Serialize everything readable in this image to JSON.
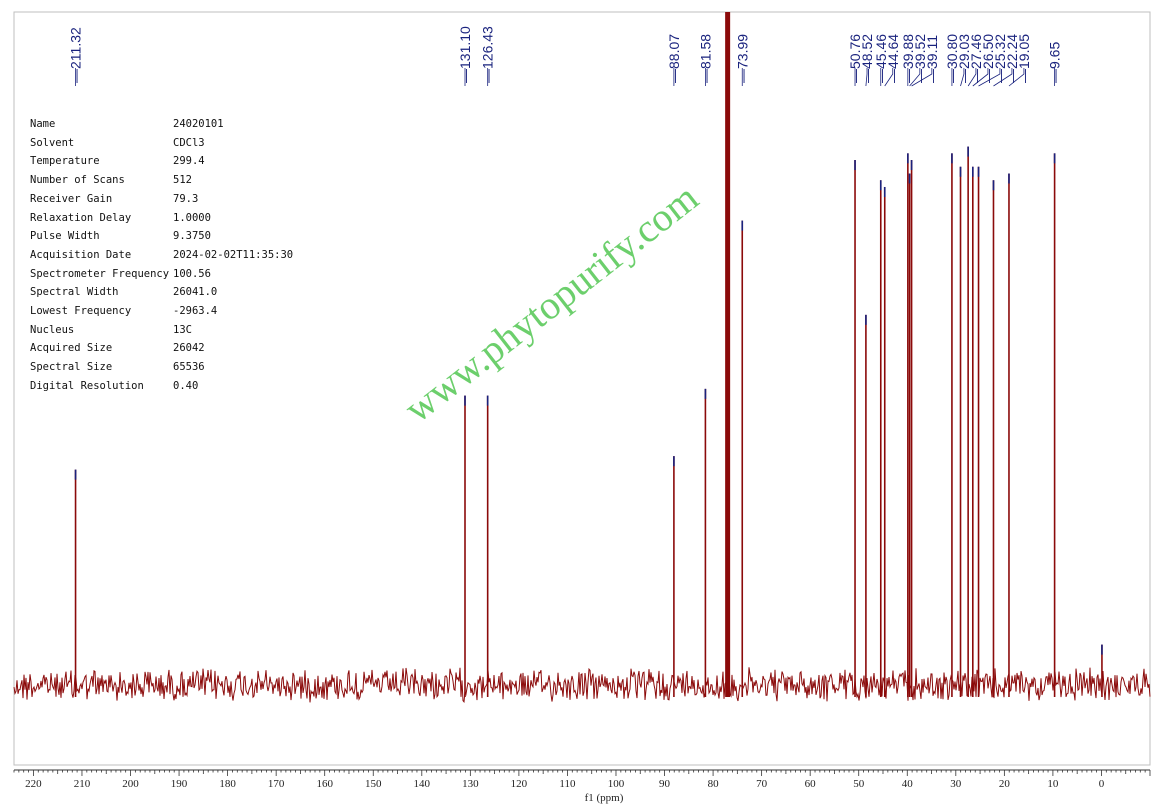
{
  "colors": {
    "baseline": "#8b0a0a",
    "peak_label": "#1a237e",
    "watermark": "#3cbf3c",
    "frame": "#bfbfbf"
  },
  "parameters": [
    {
      "key": "Name",
      "value": "24020101"
    },
    {
      "key": "Solvent",
      "value": "CDCl3"
    },
    {
      "key": "Temperature",
      "value": "299.4"
    },
    {
      "key": "Number of Scans",
      "value": "512"
    },
    {
      "key": "Receiver Gain",
      "value": "79.3"
    },
    {
      "key": "Relaxation Delay",
      "value": "1.0000"
    },
    {
      "key": "Pulse Width",
      "value": "9.3750"
    },
    {
      "key": "Acquisition Date",
      "value": "2024-02-02T11:35:30"
    },
    {
      "key": "Spectrometer Frequency",
      "value": "100.56"
    },
    {
      "key": "Spectral Width",
      "value": "26041.0"
    },
    {
      "key": "Lowest Frequency",
      "value": "-2963.4"
    },
    {
      "key": "Nucleus",
      "value": "13C"
    },
    {
      "key": "Acquired Size",
      "value": "26042"
    },
    {
      "key": "Spectral Size",
      "value": "65536"
    },
    {
      "key": "Digital Resolution",
      "value": "0.40"
    }
  ],
  "watermark": "www.phytopurify.com",
  "chart_data": {
    "type": "line",
    "xlabel": "f1 (ppm)",
    "xlim": [
      224,
      -10
    ],
    "x_reversed": true,
    "x_ticks": [
      220,
      210,
      200,
      190,
      180,
      170,
      160,
      150,
      140,
      130,
      120,
      110,
      100,
      90,
      80,
      70,
      60,
      50,
      40,
      30,
      20,
      10,
      0
    ],
    "peaks": [
      {
        "ppm": 211.32,
        "label": "211.32",
        "intensity": 0.32
      },
      {
        "ppm": 131.1,
        "label": "131.10",
        "intensity": 0.43
      },
      {
        "ppm": 126.43,
        "label": "126.43",
        "intensity": 0.43
      },
      {
        "ppm": 88.07,
        "label": "88.07",
        "intensity": 0.34
      },
      {
        "ppm": 81.58,
        "label": "81.58",
        "intensity": 0.44
      },
      {
        "ppm": 77.0,
        "label": "",
        "intensity": 1.0
      },
      {
        "ppm": 73.99,
        "label": "73.99",
        "intensity": 0.69
      },
      {
        "ppm": 50.76,
        "label": "50.76",
        "intensity": 0.78
      },
      {
        "ppm": 48.52,
        "label": "48.52",
        "intensity": 0.55
      },
      {
        "ppm": 45.46,
        "label": "45.46",
        "intensity": 0.75
      },
      {
        "ppm": 44.64,
        "label": "44.64",
        "intensity": 0.74
      },
      {
        "ppm": 39.88,
        "label": "39.88",
        "intensity": 0.79
      },
      {
        "ppm": 39.52,
        "label": "39.52",
        "intensity": 0.76
      },
      {
        "ppm": 39.11,
        "label": "39.11",
        "intensity": 0.78
      },
      {
        "ppm": 30.8,
        "label": "30.80",
        "intensity": 0.79
      },
      {
        "ppm": 29.03,
        "label": "29.03",
        "intensity": 0.77
      },
      {
        "ppm": 27.46,
        "label": "27.46",
        "intensity": 0.8
      },
      {
        "ppm": 26.5,
        "label": "26.50",
        "intensity": 0.77
      },
      {
        "ppm": 25.32,
        "label": "25.32",
        "intensity": 0.77
      },
      {
        "ppm": 22.24,
        "label": "22.24",
        "intensity": 0.75
      },
      {
        "ppm": 19.05,
        "label": "19.05",
        "intensity": 0.76
      },
      {
        "ppm": 9.65,
        "label": "9.65",
        "intensity": 0.79
      },
      {
        "ppm": -0.1,
        "label": "",
        "intensity": 0.06
      }
    ]
  }
}
